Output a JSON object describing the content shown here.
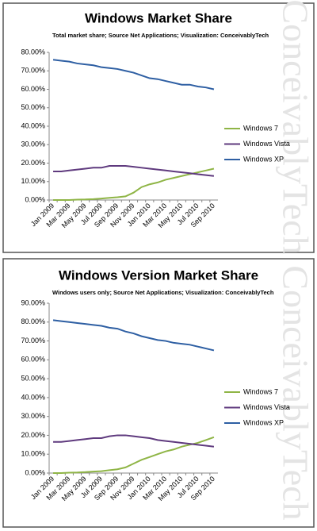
{
  "chart_data": [
    {
      "type": "line",
      "title": "Windows Market Share",
      "subtitle": "Total market share; Source Net Applications; Visualization: ConceivablyTech",
      "watermark": "ConceivablyTech",
      "categories": [
        "Jan 2009",
        null,
        "Mar 2009",
        null,
        "May 2009",
        null,
        "Jul 2009",
        null,
        "Sep 2009",
        null,
        "Nov 2009",
        null,
        "Jan 2010",
        null,
        "Mar 2010",
        null,
        "May 2010",
        null,
        "Jul 2010",
        null,
        "Sep 2010"
      ],
      "series": [
        {
          "name": "Windows 7",
          "color": "#8fb546",
          "values": [
            0,
            0,
            0,
            0.2,
            0.3,
            0.5,
            0.8,
            1.2,
            1.5,
            2,
            4,
            7,
            8.5,
            9.5,
            11,
            12,
            13,
            14,
            15,
            16,
            17
          ]
        },
        {
          "name": "Windows Vista",
          "color": "#5f3a7e",
          "values": [
            15.5,
            15.5,
            16,
            16.5,
            17,
            17.5,
            17.5,
            18.5,
            18.5,
            18.5,
            18,
            17.5,
            17,
            16.5,
            16,
            15.5,
            15,
            14.5,
            14,
            13.5,
            13
          ]
        },
        {
          "name": "Windows XP",
          "color": "#2e5fa3",
          "values": [
            76,
            75.5,
            75,
            74,
            73.5,
            73,
            72,
            71.5,
            71,
            70,
            69,
            67.5,
            66,
            65.5,
            64.5,
            63.5,
            62.5,
            62.5,
            61.5,
            61,
            60
          ]
        }
      ],
      "ylim": [
        0,
        80
      ],
      "yticks": [
        {
          "value": 0,
          "label": "0.00%"
        },
        {
          "value": 10,
          "label": "10.00%"
        },
        {
          "value": 20,
          "label": "20.00%"
        },
        {
          "value": 30,
          "label": "30.00%"
        },
        {
          "value": 40,
          "label": "40.00%"
        },
        {
          "value": 50,
          "label": "50.00%"
        },
        {
          "value": 60,
          "label": "60.00%"
        },
        {
          "value": 70,
          "label": "70.00%"
        },
        {
          "value": 80,
          "label": "80.00%"
        }
      ],
      "grid": false,
      "legend": "right"
    },
    {
      "type": "line",
      "title": "Windows Version Market Share",
      "subtitle": "Windows users only; Source Net Applications; Visualization: ConceivablyTech",
      "watermark": "ConceivablyTech",
      "categories": [
        "Jan 2009",
        null,
        "Mar 2009",
        null,
        "May 2009",
        null,
        "Jul 2009",
        null,
        "Sep 2009",
        null,
        "Nov 2009",
        null,
        "Jan 2010",
        null,
        "Mar 2010",
        null,
        "May 2010",
        null,
        "Jul 2010",
        null,
        "Sep 2010"
      ],
      "series": [
        {
          "name": "Windows 7",
          "color": "#8fb546",
          "values": [
            0,
            0,
            0.2,
            0.3,
            0.5,
            0.8,
            1,
            1.5,
            2,
            3,
            5,
            7,
            8.5,
            10,
            11.5,
            12.5,
            14,
            15,
            16,
            17.5,
            19
          ]
        },
        {
          "name": "Windows Vista",
          "color": "#5f3a7e",
          "values": [
            16.5,
            16.5,
            17,
            17.5,
            18,
            18.5,
            18.5,
            19.5,
            20,
            20,
            19.5,
            19,
            18.5,
            17.5,
            17,
            16.5,
            16,
            15.5,
            15,
            14.5,
            14
          ]
        },
        {
          "name": "Windows XP",
          "color": "#2e5fa3",
          "values": [
            81,
            80.5,
            80,
            79.5,
            79,
            78.5,
            78,
            77,
            76.5,
            75,
            74,
            72.5,
            71.5,
            70.5,
            70,
            69,
            68.5,
            68,
            67,
            66,
            65
          ]
        }
      ],
      "ylim": [
        0,
        90
      ],
      "yticks": [
        {
          "value": 0,
          "label": "0.00%"
        },
        {
          "value": 10,
          "label": "10.00%"
        },
        {
          "value": 20,
          "label": "20.00%"
        },
        {
          "value": 30,
          "label": "30.00%"
        },
        {
          "value": 40,
          "label": "40.00%"
        },
        {
          "value": 50,
          "label": "50.00%"
        },
        {
          "value": 60,
          "label": "60.00%"
        },
        {
          "value": 70,
          "label": "70.00%"
        },
        {
          "value": 80,
          "label": "80.00%"
        },
        {
          "value": 90,
          "label": "90.00%"
        }
      ],
      "grid": false,
      "legend": "right"
    }
  ]
}
